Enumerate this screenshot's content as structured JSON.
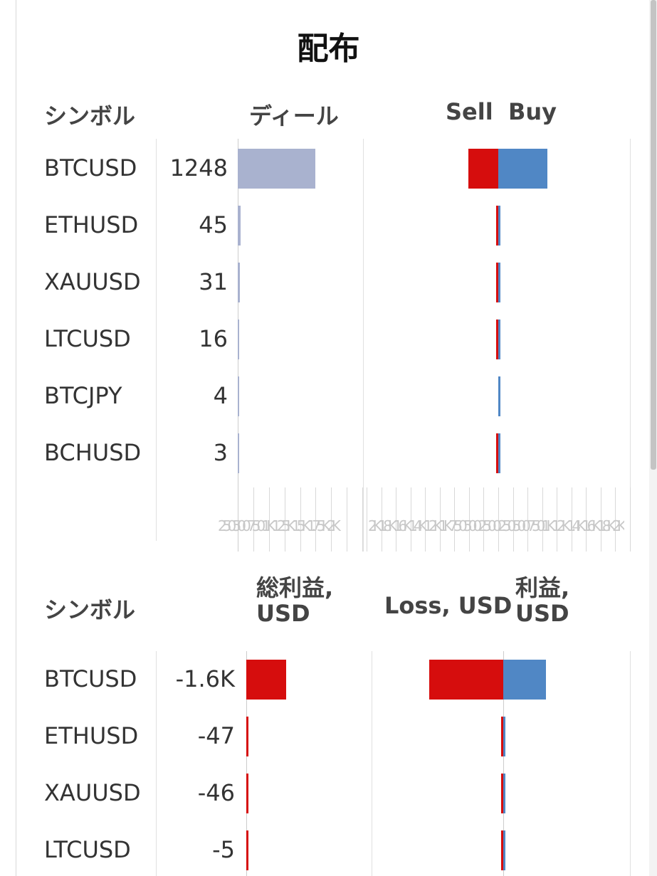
{
  "title": "配布",
  "colors": {
    "deals": "#a9b2cf",
    "sell": "#d60d0d",
    "buy": "#5087c5",
    "loss": "#d60d0d",
    "profit": "#5087c5"
  },
  "top_table": {
    "col_symbol": "シンボル",
    "col_deals": "ディール",
    "col_sell": "Sell",
    "col_buy": "Buy",
    "rows": [
      {
        "symbol": "BTCUSD",
        "deals": "1248"
      },
      {
        "symbol": "ETHUSD",
        "deals": "45"
      },
      {
        "symbol": "XAUUSD",
        "deals": "31"
      },
      {
        "symbol": "LTCUSD",
        "deals": "16"
      },
      {
        "symbol": "BTCJPY",
        "deals": "4"
      },
      {
        "symbol": "BCHUSD",
        "deals": "3"
      }
    ],
    "deals_axis_text": "250 500 750 1K 1.25K 1.5K 1.75K 2K",
    "sellbuy_axis_text": "2K 1.8K 1.6K 1.4K 1.2K 1K 750 500 250 0 250 500 750 1K 1.2K 1.4K 1.6K 1.8K 2K"
  },
  "bottom_table": {
    "col_symbol": "シンボル",
    "col_total": "総利益,\nUSD",
    "col_loss": "Loss, USD",
    "col_profit": "利益,\nUSD",
    "rows": [
      {
        "symbol": "BTCUSD",
        "total": "-1.6K"
      },
      {
        "symbol": "ETHUSD",
        "total": "-47"
      },
      {
        "symbol": "XAUUSD",
        "total": "-46"
      },
      {
        "symbol": "LTCUSD",
        "total": "-5"
      }
    ]
  },
  "chart_data": [
    {
      "type": "bar",
      "title": "ディール",
      "categories": [
        "BTCUSD",
        "ETHUSD",
        "XAUUSD",
        "LTCUSD",
        "BTCJPY",
        "BCHUSD"
      ],
      "values": [
        1248,
        45,
        31,
        16,
        4,
        3
      ],
      "xlim": [
        0,
        2000
      ]
    },
    {
      "type": "bar",
      "categories": [
        "BTCUSD",
        "ETHUSD",
        "XAUUSD",
        "LTCUSD",
        "BTCJPY",
        "BCHUSD"
      ],
      "series": [
        {
          "name": "Sell",
          "values": [
            450,
            12,
            10,
            8,
            0,
            5
          ]
        },
        {
          "name": "Buy",
          "values": [
            750,
            30,
            20,
            8,
            4,
            2
          ]
        }
      ],
      "xlim": [
        -2000,
        2000
      ]
    },
    {
      "type": "bar",
      "title": "総利益, USD",
      "categories": [
        "BTCUSD",
        "ETHUSD",
        "XAUUSD",
        "LTCUSD"
      ],
      "values": [
        -1600,
        -47,
        -46,
        -5
      ],
      "xlim": [
        -5000,
        0
      ]
    },
    {
      "type": "bar",
      "categories": [
        "BTCUSD",
        "ETHUSD",
        "XAUUSD",
        "LTCUSD"
      ],
      "series": [
        {
          "name": "Loss, USD",
          "values": [
            -4000,
            -60,
            -50,
            -15
          ]
        },
        {
          "name": "利益, USD",
          "values": [
            2300,
            13,
            4,
            10
          ]
        }
      ],
      "xlim": [
        -8000,
        7000
      ]
    }
  ]
}
